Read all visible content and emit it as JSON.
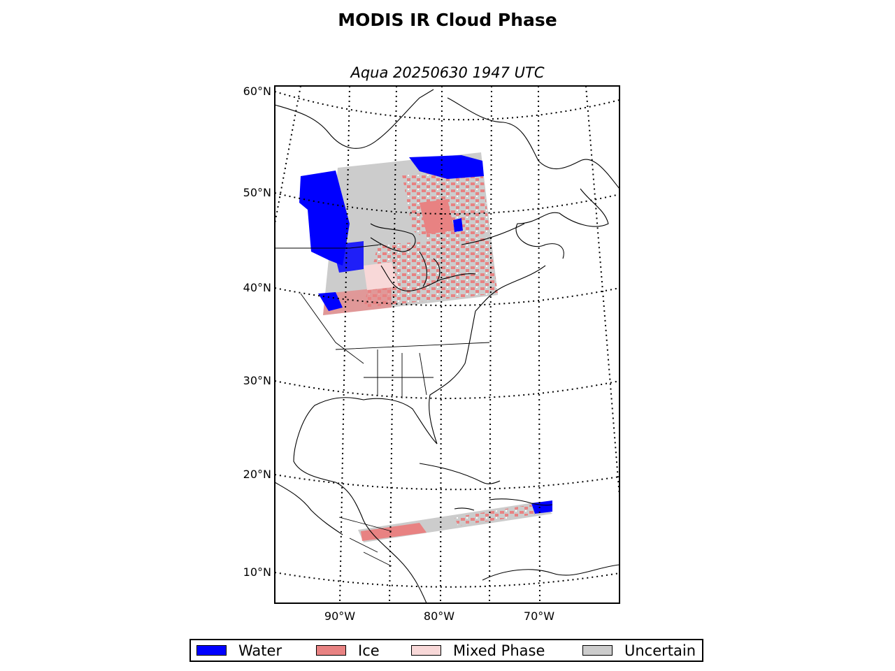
{
  "title": "MODIS IR Cloud Phase",
  "subtitle": "Aqua 20250630 1947 UTC",
  "lat_labels": [
    "60°N",
    "50°N",
    "40°N",
    "30°N",
    "20°N",
    "10°N"
  ],
  "lon_labels": [
    "90°W",
    "80°W",
    "70°W"
  ],
  "legend": [
    {
      "label": "Water",
      "color": "#0000ff"
    },
    {
      "label": "Ice",
      "color": "#e88282"
    },
    {
      "label": "Mixed Phase",
      "color": "#f8d8d8"
    },
    {
      "label": "Uncertain",
      "color": "#cccccc"
    }
  ],
  "map": {
    "projection": "lambert-conformal",
    "satellite": "Aqua",
    "land_fill": "#ffffff",
    "coastline_color": "#000000",
    "graticule": "dotted"
  }
}
